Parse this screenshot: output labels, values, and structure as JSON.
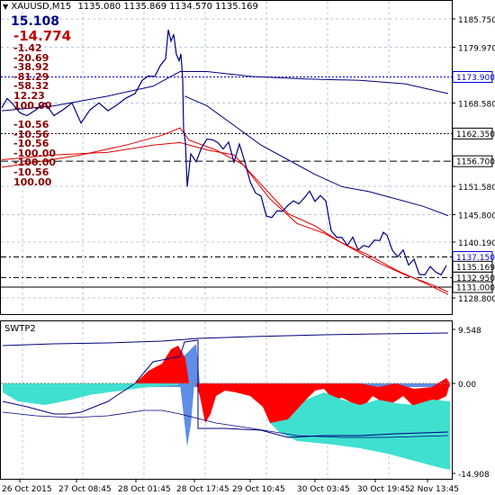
{
  "header": {
    "symbol_label": "XAUUSD,M15",
    "ohlc": [
      "1135.080",
      "1135.869",
      "1134.570",
      "1135.169"
    ]
  },
  "stats": {
    "main_value": "15.108",
    "red_values": [
      "-14.774",
      "-1.42",
      "-20.69",
      "-38.92",
      "-81.29",
      "-58.32",
      "12.23",
      "100.00"
    ],
    "lower_values": [
      "-10.56",
      "-10.56",
      "-10.56",
      "-100.00",
      "-100.00",
      "-10.56",
      "100.00"
    ]
  },
  "price_axis": {
    "ticks": [
      "1185.750",
      "1179.970",
      "1168.580",
      "1151.580",
      "1145.800",
      "1140.190",
      "1128.800"
    ],
    "tags": [
      {
        "value": "1173.900",
        "color": "#0000cd"
      },
      {
        "value": "1162.350",
        "color": "#000000"
      },
      {
        "value": "1156.700",
        "color": "#000000"
      },
      {
        "value": "1137.150",
        "color": "#0000cd"
      },
      {
        "value": "1135.169",
        "color": "#000000"
      },
      {
        "value": "1132.950",
        "color": "#000000"
      },
      {
        "value": "1131.000",
        "color": "#000000"
      }
    ]
  },
  "subwindow": {
    "title": "SWTP2",
    "ticks": [
      "9.548",
      "0.00",
      "-14.908"
    ]
  },
  "time_axis": {
    "labels": [
      "26 Oct 2015",
      "27 Oct 08:45",
      "28 Oct 01:45",
      "28 Oct 17:45",
      "29 Oct 10:45",
      "30 Oct 03:45",
      "30 Oct 19:45",
      "2 Nov 13:45"
    ]
  },
  "colors": {
    "price_line": "#000080",
    "upper_ma": "#000080",
    "lower_ma": "#e00000",
    "grid": "#b4c8dc",
    "hist_positive": "#ff0000",
    "hist_negative": "#40e0d0",
    "hist_zone": "#5f8ee6",
    "text_red": "#8b0000",
    "text_navy": "#000080"
  }
}
